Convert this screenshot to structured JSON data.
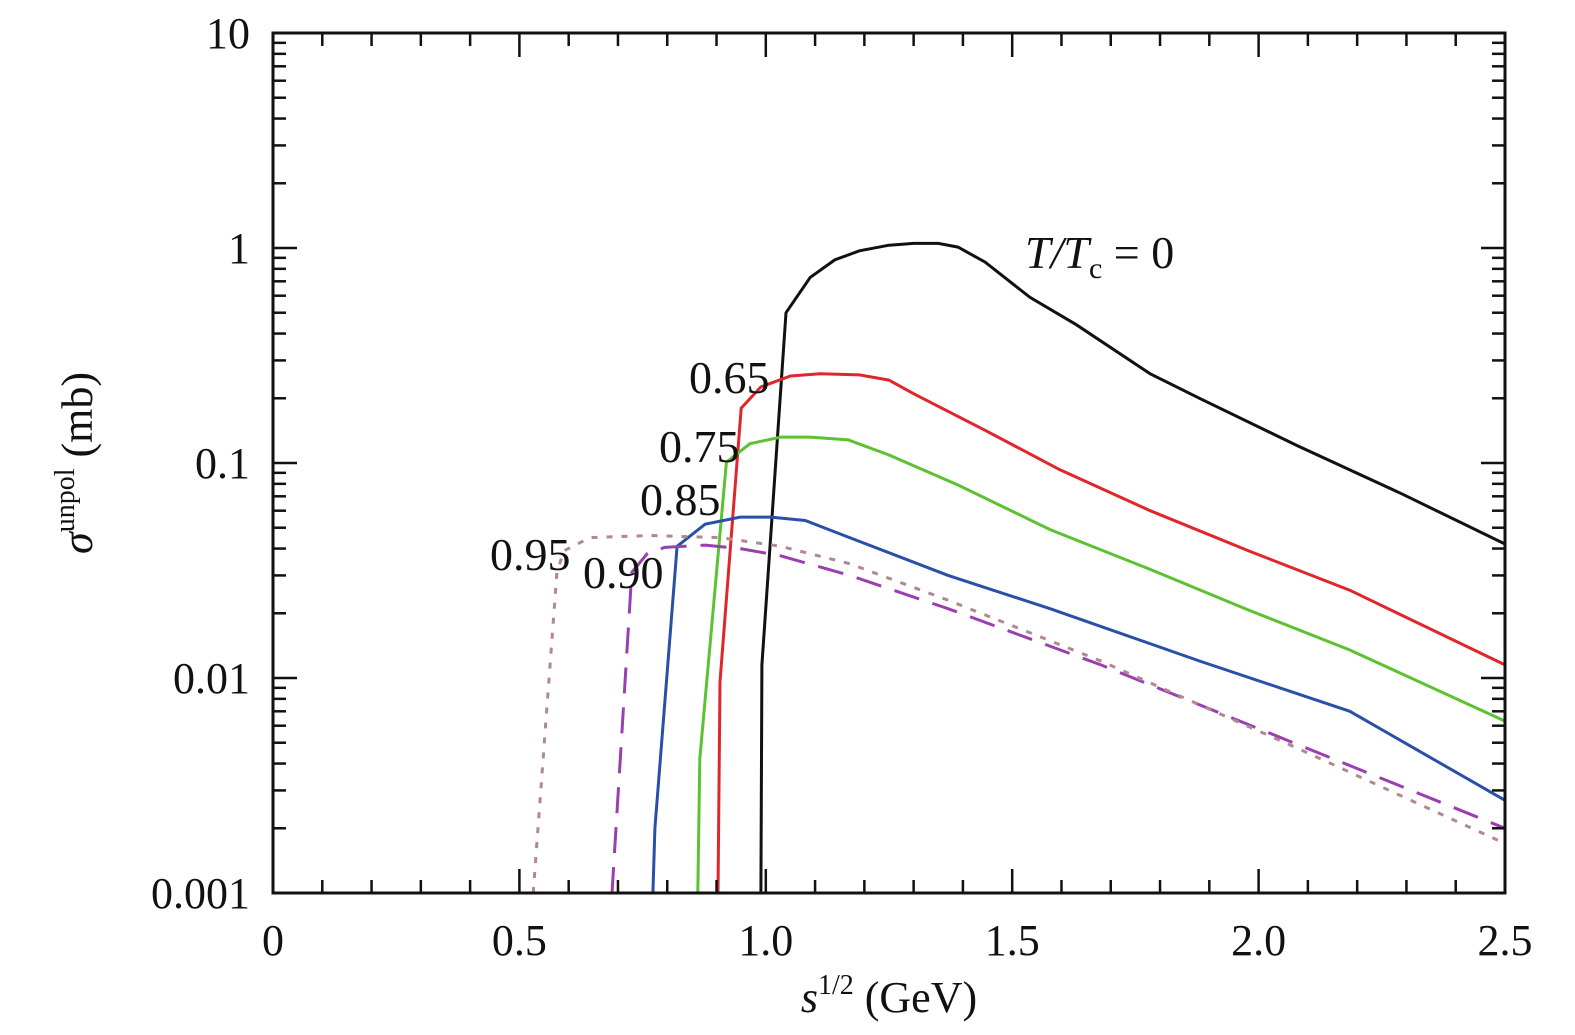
{
  "chart_data": {
    "type": "line",
    "title": "",
    "xlabel": {
      "main": "s",
      "sup": "1/2",
      "unit": " (GeV)"
    },
    "ylabel": {
      "main": "σ",
      "sup": "unpol",
      "unit": " (mb)"
    },
    "xlim": [
      0,
      2.5
    ],
    "ylim": [
      0.001,
      10
    ],
    "yscale": "log",
    "grid": false,
    "x_ticks": [
      "0",
      "0.5",
      "1.0",
      "1.5",
      "2.0",
      "2.5"
    ],
    "x_tick_values": [
      0,
      0.5,
      1.0,
      1.5,
      2.0,
      2.5
    ],
    "y_ticks": [
      "0.001",
      "0.01",
      "0.1",
      "1",
      "10"
    ],
    "y_tick_values": [
      0.001,
      0.01,
      0.1,
      1,
      10
    ],
    "series": [
      {
        "name": "T/Tc = 0",
        "label": "0",
        "color": "#111111",
        "style": "solid",
        "x": [
          0.99,
          0.992,
          1.041,
          1.09,
          1.14,
          1.19,
          1.25,
          1.3,
          1.35,
          1.39,
          1.445,
          1.536,
          1.63,
          1.78,
          1.88,
          2.08,
          2.29,
          2.5
        ],
        "y": [
          0.001,
          0.0115,
          0.5,
          0.73,
          0.88,
          0.97,
          1.03,
          1.05,
          1.05,
          1.01,
          0.86,
          0.59,
          0.44,
          0.26,
          0.2,
          0.12,
          0.072,
          0.042
        ]
      },
      {
        "name": "T/Tc = 0.65",
        "label": "0.65",
        "color": "#e0262a",
        "style": "solid",
        "x": [
          0.903,
          0.907,
          0.95,
          0.99,
          1.05,
          1.11,
          1.19,
          1.25,
          1.3,
          1.445,
          1.597,
          1.78,
          1.98,
          2.185,
          2.5
        ],
        "y": [
          0.001,
          0.0096,
          0.18,
          0.226,
          0.254,
          0.26,
          0.257,
          0.243,
          0.21,
          0.142,
          0.093,
          0.06,
          0.039,
          0.0256,
          0.0115
        ]
      },
      {
        "name": "T/Tc = 0.75",
        "label": "0.75",
        "color": "#5cc232",
        "style": "solid",
        "x": [
          0.862,
          0.866,
          0.92,
          0.968,
          1.03,
          1.09,
          1.167,
          1.25,
          1.39,
          1.577,
          1.78,
          1.98,
          2.185,
          2.5
        ],
        "y": [
          0.001,
          0.0042,
          0.101,
          0.123,
          0.132,
          0.132,
          0.128,
          0.109,
          0.079,
          0.049,
          0.032,
          0.0207,
          0.0135,
          0.0063
        ]
      },
      {
        "name": "T/Tc = 0.85",
        "label": "0.85",
        "color": "#2a4fa8",
        "style": "solid",
        "x": [
          0.771,
          0.775,
          0.82,
          0.877,
          0.948,
          1.01,
          1.08,
          1.17,
          1.37,
          1.577,
          1.88,
          2.185,
          2.5
        ],
        "y": [
          0.001,
          0.002,
          0.041,
          0.052,
          0.056,
          0.056,
          0.054,
          0.045,
          0.03,
          0.021,
          0.012,
          0.007,
          0.0027
        ]
      },
      {
        "name": "T/Tc = 0.90",
        "label": "0.90",
        "color": "#9b3fb0",
        "style": "dashed",
        "x": [
          0.688,
          0.728,
          0.76,
          0.795,
          0.877,
          0.948,
          1.03,
          1.17,
          1.37,
          1.68,
          2.08,
          2.5
        ],
        "y": [
          0.001,
          0.031,
          0.038,
          0.0405,
          0.0415,
          0.04,
          0.037,
          0.03,
          0.021,
          0.0115,
          0.0049,
          0.002
        ]
      },
      {
        "name": "T/Tc = 0.95",
        "label": "0.95",
        "color": "#b08890",
        "style": "dotted",
        "x": [
          0.528,
          0.576,
          0.59,
          0.643,
          0.765,
          0.907,
          1.03,
          1.17,
          1.37,
          1.68,
          2.08,
          2.5
        ],
        "y": [
          0.001,
          0.031,
          0.039,
          0.045,
          0.046,
          0.045,
          0.041,
          0.034,
          0.023,
          0.012,
          0.0047,
          0.0017
        ]
      }
    ],
    "annotations": {
      "main_prefix": "T/T",
      "main_sub": "c",
      "main_suffix": " = 0"
    }
  }
}
